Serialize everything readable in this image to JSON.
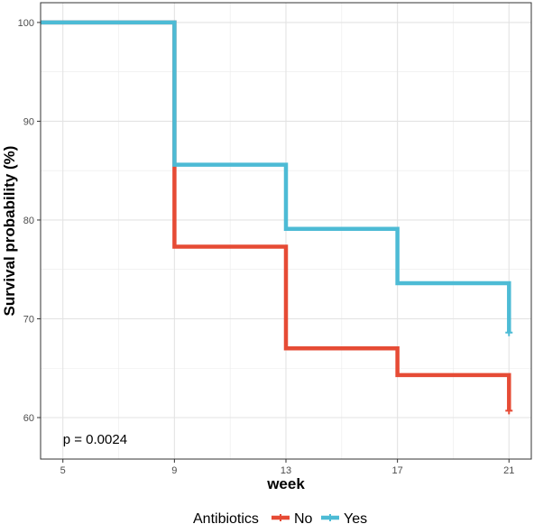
{
  "chart_data": {
    "type": "line",
    "step": true,
    "xlabel": "week",
    "ylabel": "Survival probability (%)",
    "x_ticks": [
      5,
      9,
      13,
      17,
      21
    ],
    "y_ticks": [
      60,
      70,
      80,
      90,
      100
    ],
    "xlim": [
      4.2,
      21.8
    ],
    "ylim": [
      55.8,
      102
    ],
    "grid": true,
    "legend_position": "bottom",
    "legend_title": "Antibiotics",
    "annotation": "p = 0.0024",
    "series": [
      {
        "name": "No",
        "color": "#E64B35",
        "x": [
          4.2,
          9,
          9,
          13,
          13,
          17,
          17,
          21,
          21
        ],
        "y": [
          100,
          100,
          77.3,
          77.3,
          67,
          67,
          64.3,
          64.3,
          60.7
        ],
        "censor": [
          [
            21,
            60.7
          ]
        ]
      },
      {
        "name": "Yes",
        "color": "#4DBBD5",
        "x": [
          4.2,
          9,
          9,
          13,
          13,
          17,
          17,
          21,
          21
        ],
        "y": [
          100,
          100,
          85.6,
          85.6,
          79.1,
          79.1,
          73.6,
          73.6,
          68.6
        ],
        "censor": [
          [
            21,
            68.6
          ]
        ]
      }
    ]
  }
}
